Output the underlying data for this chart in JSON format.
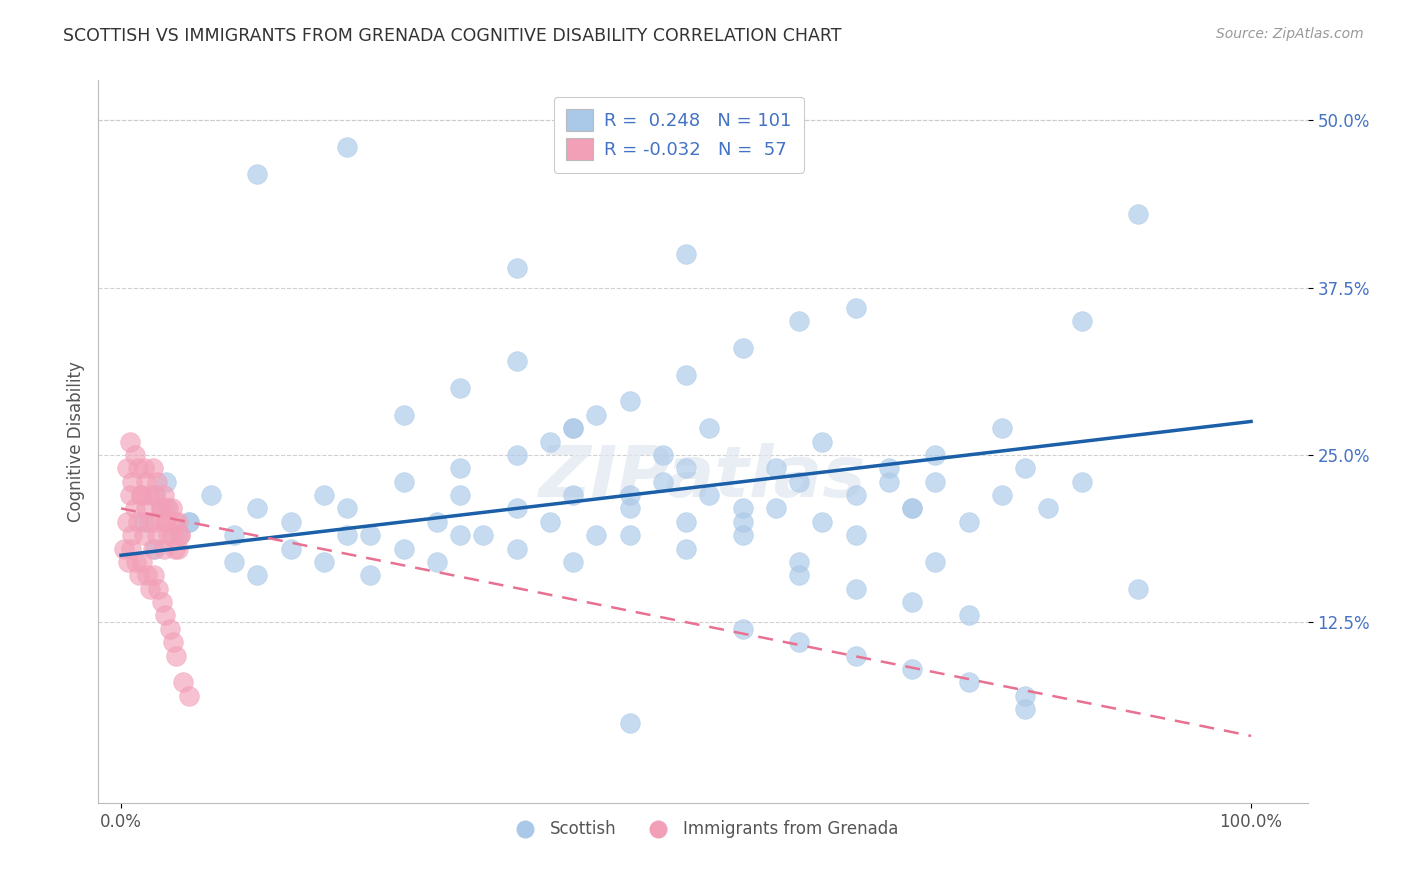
{
  "title": "SCOTTISH VS IMMIGRANTS FROM GRENADA COGNITIVE DISABILITY CORRELATION CHART",
  "source": "Source: ZipAtlas.com",
  "ylabel": "Cognitive Disability",
  "scottish_color": "#aac8e8",
  "grenada_color": "#f2a0b8",
  "scottish_line_color": "#1a5fa8",
  "grenada_line_color": "#e87090",
  "background_color": "#ffffff",
  "grid_color": "#cccccc",
  "tick_color": "#4472c4",
  "legend_label1": "R =  0.248   N = 101",
  "legend_label2": "R = -0.032   N =  57",
  "bottom_label1": "Scottish",
  "bottom_label2": "Immigrants from Grenada",
  "scottish_x": [
    0.02,
    0.03,
    0.04,
    0.05,
    0.06,
    0.03,
    0.04,
    0.06,
    0.08,
    0.1,
    0.12,
    0.15,
    0.18,
    0.2,
    0.22,
    0.25,
    0.28,
    0.3,
    0.32,
    0.35,
    0.38,
    0.4,
    0.42,
    0.45,
    0.48,
    0.5,
    0.52,
    0.55,
    0.58,
    0.6,
    0.62,
    0.65,
    0.68,
    0.7,
    0.72,
    0.75,
    0.78,
    0.8,
    0.82,
    0.85,
    0.1,
    0.12,
    0.15,
    0.18,
    0.2,
    0.22,
    0.25,
    0.28,
    0.3,
    0.35,
    0.4,
    0.45,
    0.5,
    0.55,
    0.6,
    0.65,
    0.7,
    0.3,
    0.35,
    0.4,
    0.25,
    0.3,
    0.35,
    0.4,
    0.45,
    0.5,
    0.55,
    0.6,
    0.38,
    0.42,
    0.48,
    0.52,
    0.58,
    0.62,
    0.68,
    0.72,
    0.78,
    0.45,
    0.5,
    0.55,
    0.6,
    0.65,
    0.7,
    0.75,
    0.55,
    0.6,
    0.65,
    0.7,
    0.75,
    0.8,
    0.85,
    0.9,
    0.12,
    0.2,
    0.35,
    0.5,
    0.65,
    0.8,
    0.9,
    0.72,
    0.45
  ],
  "scottish_y": [
    0.2,
    0.22,
    0.21,
    0.19,
    0.2,
    0.18,
    0.23,
    0.2,
    0.22,
    0.19,
    0.21,
    0.2,
    0.22,
    0.21,
    0.19,
    0.23,
    0.2,
    0.22,
    0.19,
    0.21,
    0.2,
    0.22,
    0.19,
    0.21,
    0.23,
    0.2,
    0.22,
    0.19,
    0.21,
    0.23,
    0.2,
    0.22,
    0.24,
    0.21,
    0.23,
    0.2,
    0.22,
    0.24,
    0.21,
    0.23,
    0.17,
    0.16,
    0.18,
    0.17,
    0.19,
    0.16,
    0.18,
    0.17,
    0.19,
    0.18,
    0.17,
    0.19,
    0.18,
    0.2,
    0.17,
    0.19,
    0.21,
    0.24,
    0.25,
    0.27,
    0.28,
    0.3,
    0.32,
    0.27,
    0.29,
    0.31,
    0.33,
    0.35,
    0.26,
    0.28,
    0.25,
    0.27,
    0.24,
    0.26,
    0.23,
    0.25,
    0.27,
    0.22,
    0.24,
    0.21,
    0.16,
    0.15,
    0.14,
    0.13,
    0.12,
    0.11,
    0.1,
    0.09,
    0.08,
    0.07,
    0.35,
    0.43,
    0.46,
    0.48,
    0.39,
    0.4,
    0.36,
    0.06,
    0.15,
    0.17,
    0.05
  ],
  "grenada_x": [
    0.005,
    0.008,
    0.01,
    0.012,
    0.015,
    0.018,
    0.02,
    0.022,
    0.025,
    0.028,
    0.03,
    0.032,
    0.035,
    0.038,
    0.04,
    0.042,
    0.045,
    0.048,
    0.05,
    0.052,
    0.005,
    0.008,
    0.01,
    0.012,
    0.015,
    0.018,
    0.02,
    0.022,
    0.025,
    0.028,
    0.03,
    0.032,
    0.035,
    0.038,
    0.04,
    0.042,
    0.045,
    0.048,
    0.05,
    0.052,
    0.003,
    0.006,
    0.009,
    0.013,
    0.016,
    0.019,
    0.023,
    0.026,
    0.029,
    0.033,
    0.036,
    0.039,
    0.043,
    0.046,
    0.049,
    0.055,
    0.06
  ],
  "grenada_y": [
    0.2,
    0.22,
    0.19,
    0.21,
    0.2,
    0.22,
    0.19,
    0.21,
    0.2,
    0.18,
    0.2,
    0.19,
    0.21,
    0.18,
    0.2,
    0.19,
    0.21,
    0.18,
    0.2,
    0.19,
    0.24,
    0.26,
    0.23,
    0.25,
    0.24,
    0.22,
    0.24,
    0.23,
    0.22,
    0.24,
    0.22,
    0.23,
    0.21,
    0.22,
    0.2,
    0.21,
    0.19,
    0.2,
    0.18,
    0.19,
    0.18,
    0.17,
    0.18,
    0.17,
    0.16,
    0.17,
    0.16,
    0.15,
    0.16,
    0.15,
    0.14,
    0.13,
    0.12,
    0.11,
    0.1,
    0.08,
    0.07
  ],
  "scottish_line_x": [
    0.0,
    1.0
  ],
  "scottish_line_y": [
    0.175,
    0.275
  ],
  "grenada_line_x": [
    0.0,
    1.0
  ],
  "grenada_line_y": [
    0.21,
    0.04
  ],
  "xlim": [
    -0.02,
    1.05
  ],
  "ylim": [
    -0.01,
    0.53
  ],
  "xticks": [
    0.0,
    1.0
  ],
  "xtick_labels": [
    "0.0%",
    "100.0%"
  ],
  "yticks": [
    0.125,
    0.25,
    0.375,
    0.5
  ],
  "ytick_labels": [
    "12.5%",
    "25.0%",
    "37.5%",
    "50.0%"
  ]
}
